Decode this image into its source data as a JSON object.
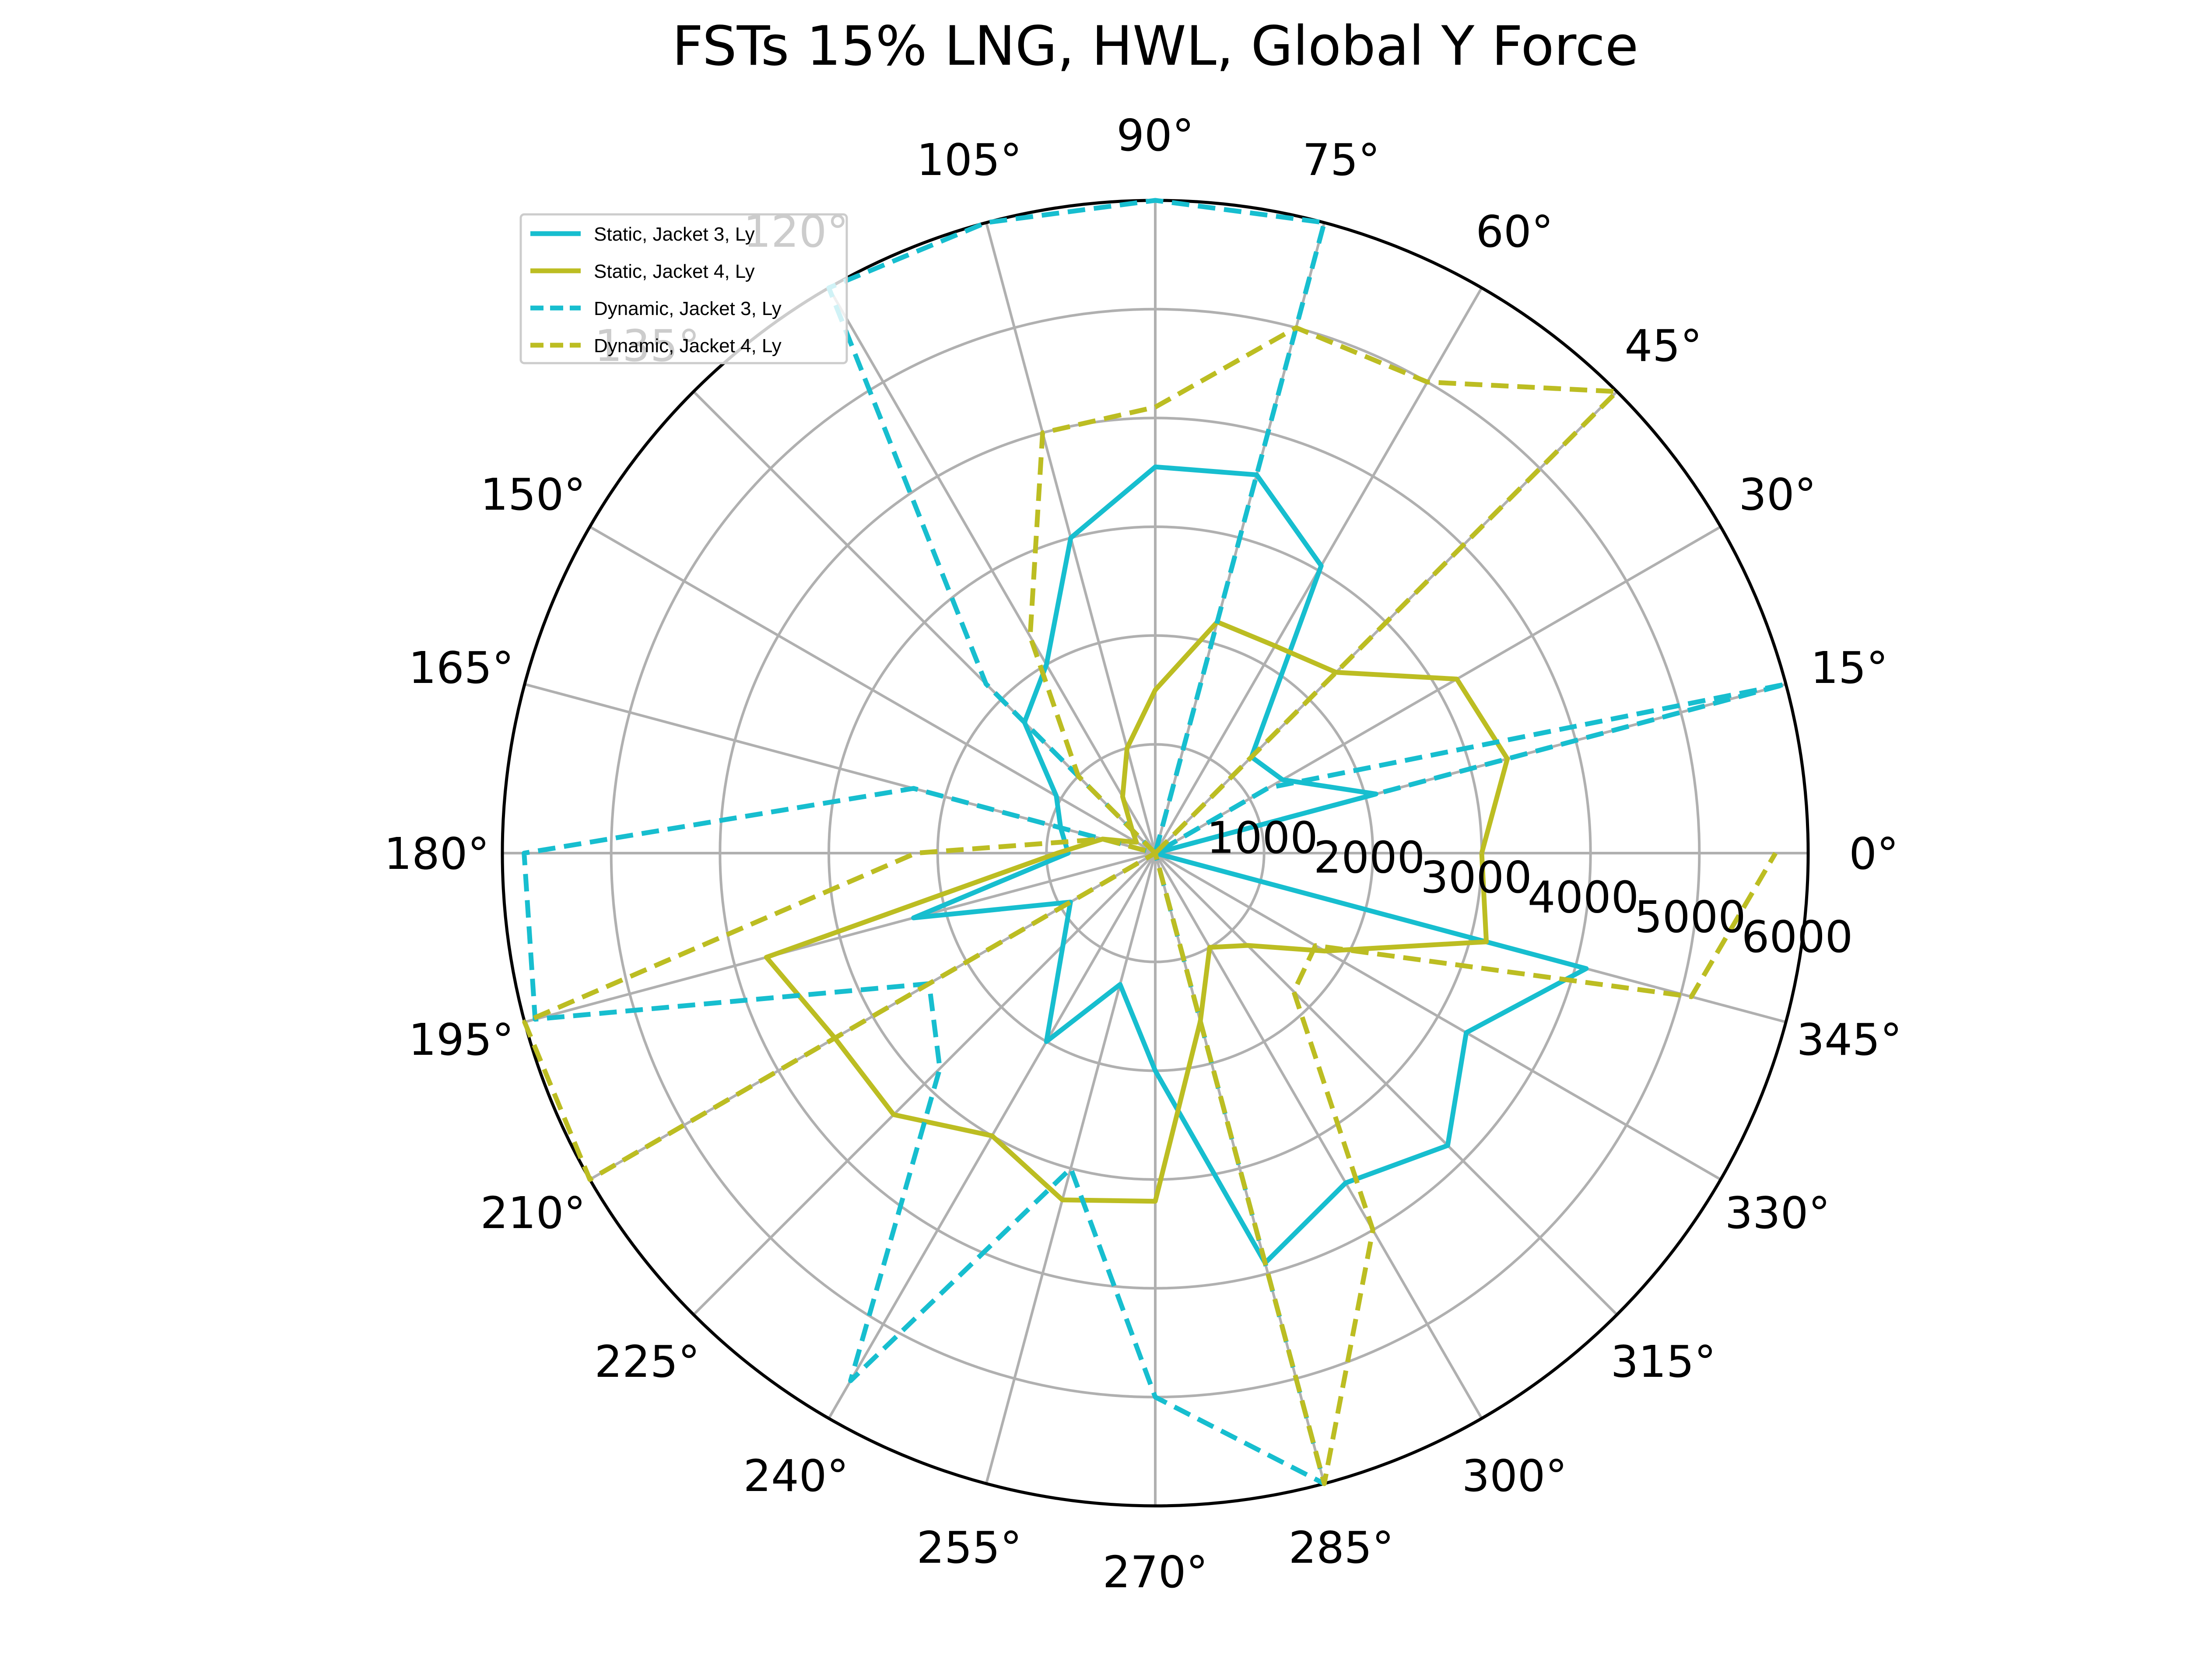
{
  "chart_data": {
    "type": "polar-line",
    "title": "FSTs 15% LNG, HWL, Global Y Force",
    "theta_unit": "degrees",
    "theta_ticks": [
      0,
      15,
      30,
      45,
      60,
      75,
      90,
      105,
      120,
      135,
      150,
      165,
      180,
      195,
      210,
      225,
      240,
      255,
      270,
      285,
      300,
      315,
      330,
      345
    ],
    "theta_tick_labels": [
      "0°",
      "15°",
      "30°",
      "45°",
      "60°",
      "75°",
      "90°",
      "105°",
      "120°",
      "135°",
      "150°",
      "165°",
      "180°",
      "195°",
      "210°",
      "225°",
      "240°",
      "255°",
      "270°",
      "285°",
      "300°",
      "315°",
      "330°",
      "345°"
    ],
    "r_ticks": [
      1000,
      2000,
      3000,
      4000,
      5000,
      6000
    ],
    "r_tick_labels": [
      "1000",
      "2000",
      "3000",
      "4000",
      "5000",
      "6000"
    ],
    "r_range": [
      0,
      6000
    ],
    "grid": true,
    "legend_position": "upper-left",
    "series": [
      {
        "name": "Static, Jacket 3, Ly",
        "color": "#17becf",
        "style": "solid",
        "theta": [
          0,
          15,
          30,
          45,
          60,
          75,
          90,
          105,
          120,
          135,
          150,
          165,
          180,
          195,
          210,
          225,
          240,
          255,
          270,
          285,
          300,
          315,
          330,
          345,
          360
        ],
        "r": [
          0,
          2100,
          1350,
          1250,
          3050,
          3600,
          3550,
          3000,
          2000,
          1700,
          1050,
          900,
          800,
          2300,
          900,
          1200,
          2000,
          1250,
          2000,
          3900,
          3500,
          3800,
          3300,
          4100,
          0
        ]
      },
      {
        "name": "Static, Jacket 4, Ly",
        "color": "#bcbd22",
        "style": "solid",
        "theta": [
          0,
          15,
          30,
          45,
          60,
          75,
          90,
          105,
          120,
          135,
          150,
          165,
          180,
          195,
          210,
          225,
          240,
          255,
          270,
          285,
          300,
          315,
          330,
          345,
          360
        ],
        "r": [
          3000,
          3350,
          3200,
          2350,
          2200,
          2200,
          1500,
          1000,
          600,
          300,
          200,
          500,
          900,
          3700,
          3400,
          3400,
          3000,
          3300,
          3200,
          1600,
          1000,
          1200,
          1800,
          3150,
          3000
        ]
      },
      {
        "name": "Dynamic, Jacket 3, Ly",
        "color": "#17becf",
        "style": "dashed",
        "theta": [
          0,
          15,
          30,
          45,
          60,
          75,
          90,
          105,
          120,
          135,
          150,
          165,
          180,
          195,
          210,
          225,
          240,
          255,
          270,
          285,
          300,
          315,
          330,
          345,
          360
        ],
        "r": [
          0,
          6000,
          1200,
          0,
          0,
          6000,
          6000,
          6000,
          6000,
          2200,
          0,
          2300,
          5800,
          5900,
          2400,
          2800,
          5600,
          3000,
          5000,
          6000,
          0,
          0,
          0,
          0,
          0
        ]
      },
      {
        "name": "Dynamic, Jacket 4, Ly",
        "color": "#bcbd22",
        "style": "dashed",
        "theta": [
          0,
          15,
          30,
          45,
          60,
          75,
          90,
          105,
          120,
          135,
          150,
          165,
          180,
          195,
          210,
          225,
          240,
          255,
          270,
          285,
          300,
          315,
          330,
          345,
          360
        ],
        "r": [
          0,
          0,
          0,
          6000,
          5000,
          5000,
          4100,
          4000,
          2300,
          1000,
          0,
          500,
          2200,
          6000,
          6000,
          0,
          0,
          0,
          0,
          6000,
          4000,
          1800,
          1700,
          5100,
          5700
        ]
      }
    ]
  }
}
